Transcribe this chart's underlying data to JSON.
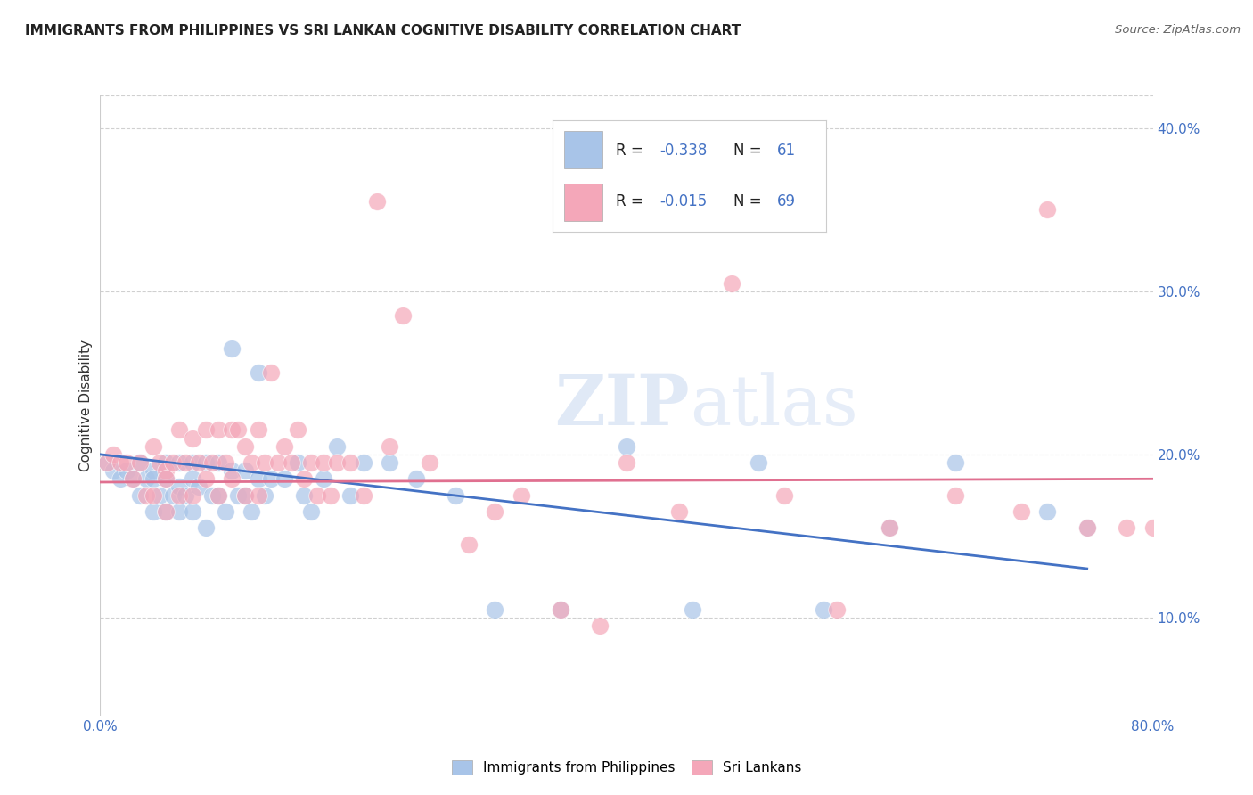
{
  "title": "IMMIGRANTS FROM PHILIPPINES VS SRI LANKAN COGNITIVE DISABILITY CORRELATION CHART",
  "source": "Source: ZipAtlas.com",
  "ylabel": "Cognitive Disability",
  "xlim": [
    0.0,
    0.8
  ],
  "ylim": [
    0.04,
    0.42
  ],
  "yticks": [
    0.1,
    0.2,
    0.3,
    0.4
  ],
  "ytick_labels": [
    "10.0%",
    "20.0%",
    "30.0%",
    "40.0%"
  ],
  "xticks": [
    0.0,
    0.1,
    0.2,
    0.3,
    0.4,
    0.5,
    0.6,
    0.7,
    0.8
  ],
  "xtick_labels": [
    "0.0%",
    "",
    "",
    "",
    "",
    "",
    "",
    "",
    "80.0%"
  ],
  "color_blue": "#a8c4e8",
  "color_pink": "#f4a7b9",
  "line_blue": "#4472c4",
  "line_pink": "#e07090",
  "watermark_zip": "ZIP",
  "watermark_atlas": "atlas",
  "axis_color": "#4472c4",
  "background_color": "#ffffff",
  "grid_color": "#d0d0d0",
  "philippines_x": [
    0.005,
    0.01,
    0.015,
    0.02,
    0.025,
    0.03,
    0.03,
    0.035,
    0.04,
    0.04,
    0.04,
    0.045,
    0.05,
    0.05,
    0.05,
    0.055,
    0.06,
    0.06,
    0.06,
    0.065,
    0.07,
    0.07,
    0.07,
    0.075,
    0.08,
    0.08,
    0.085,
    0.09,
    0.09,
    0.095,
    0.1,
    0.1,
    0.105,
    0.11,
    0.11,
    0.115,
    0.12,
    0.12,
    0.125,
    0.13,
    0.14,
    0.15,
    0.155,
    0.16,
    0.17,
    0.18,
    0.19,
    0.2,
    0.22,
    0.24,
    0.27,
    0.3,
    0.35,
    0.4,
    0.45,
    0.5,
    0.55,
    0.6,
    0.65,
    0.72,
    0.75
  ],
  "philippines_y": [
    0.195,
    0.19,
    0.185,
    0.19,
    0.185,
    0.195,
    0.175,
    0.185,
    0.19,
    0.185,
    0.165,
    0.175,
    0.195,
    0.185,
    0.165,
    0.175,
    0.195,
    0.18,
    0.165,
    0.175,
    0.195,
    0.185,
    0.165,
    0.18,
    0.195,
    0.155,
    0.175,
    0.195,
    0.175,
    0.165,
    0.265,
    0.19,
    0.175,
    0.19,
    0.175,
    0.165,
    0.25,
    0.185,
    0.175,
    0.185,
    0.185,
    0.195,
    0.175,
    0.165,
    0.185,
    0.205,
    0.175,
    0.195,
    0.195,
    0.185,
    0.175,
    0.105,
    0.105,
    0.205,
    0.105,
    0.195,
    0.105,
    0.155,
    0.195,
    0.165,
    0.155
  ],
  "srilanka_x": [
    0.005,
    0.01,
    0.015,
    0.02,
    0.025,
    0.03,
    0.035,
    0.04,
    0.04,
    0.045,
    0.05,
    0.05,
    0.05,
    0.055,
    0.06,
    0.06,
    0.065,
    0.07,
    0.07,
    0.075,
    0.08,
    0.08,
    0.085,
    0.09,
    0.09,
    0.095,
    0.1,
    0.1,
    0.105,
    0.11,
    0.11,
    0.115,
    0.12,
    0.12,
    0.125,
    0.13,
    0.135,
    0.14,
    0.145,
    0.15,
    0.155,
    0.16,
    0.165,
    0.17,
    0.175,
    0.18,
    0.19,
    0.2,
    0.21,
    0.22,
    0.23,
    0.25,
    0.28,
    0.3,
    0.32,
    0.35,
    0.38,
    0.4,
    0.44,
    0.48,
    0.52,
    0.56,
    0.6,
    0.65,
    0.7,
    0.72,
    0.75,
    0.78,
    0.8
  ],
  "srilanka_y": [
    0.195,
    0.2,
    0.195,
    0.195,
    0.185,
    0.195,
    0.175,
    0.205,
    0.175,
    0.195,
    0.19,
    0.185,
    0.165,
    0.195,
    0.215,
    0.175,
    0.195,
    0.21,
    0.175,
    0.195,
    0.215,
    0.185,
    0.195,
    0.215,
    0.175,
    0.195,
    0.215,
    0.185,
    0.215,
    0.205,
    0.175,
    0.195,
    0.215,
    0.175,
    0.195,
    0.25,
    0.195,
    0.205,
    0.195,
    0.215,
    0.185,
    0.195,
    0.175,
    0.195,
    0.175,
    0.195,
    0.195,
    0.175,
    0.355,
    0.205,
    0.285,
    0.195,
    0.145,
    0.165,
    0.175,
    0.105,
    0.095,
    0.195,
    0.165,
    0.305,
    0.175,
    0.105,
    0.155,
    0.175,
    0.165,
    0.35,
    0.155,
    0.155,
    0.155
  ]
}
